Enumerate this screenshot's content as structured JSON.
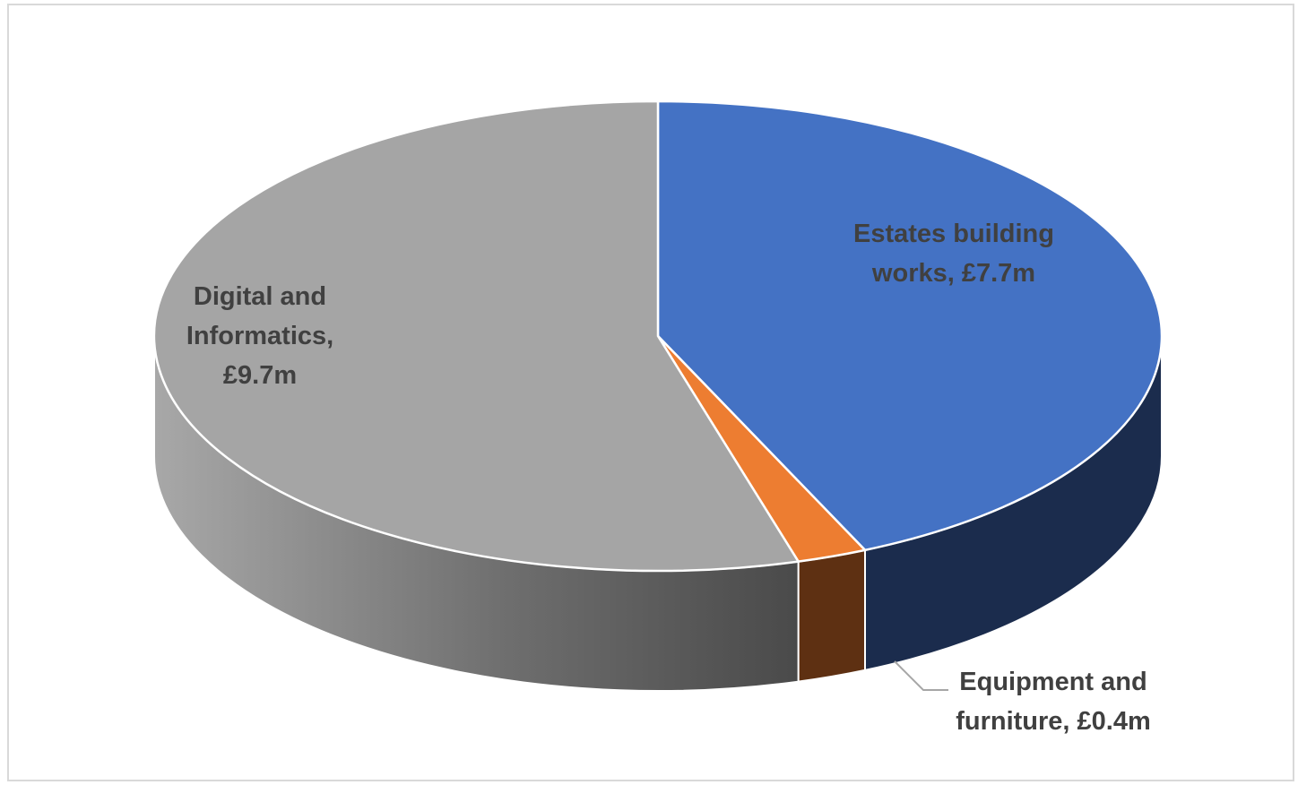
{
  "chart_data": {
    "type": "pie",
    "style": "3d",
    "title": "",
    "slices": [
      {
        "label": "Estates building works",
        "value": 7.7,
        "display": "£7.7m",
        "color": "#4472c4",
        "side_color": "#1b2c4d"
      },
      {
        "label": "Equipment and furniture",
        "value": 0.4,
        "display": "£0.4m",
        "color": "#ed7d31",
        "side_color": "#5e3012"
      },
      {
        "label": "Digital and Informatics",
        "value": 9.7,
        "display": "£9.7m",
        "color": "#a5a5a5",
        "side_color": "#7f7f7f"
      }
    ],
    "data_labels": [
      {
        "lines": [
          "Estates building",
          "works, £7.7m"
        ]
      },
      {
        "lines": [
          "Equipment and",
          "furniture, £0.4m"
        ]
      },
      {
        "lines": [
          "Digital and",
          "Informatics,",
          "£9.7m"
        ]
      }
    ],
    "legend": "none"
  }
}
